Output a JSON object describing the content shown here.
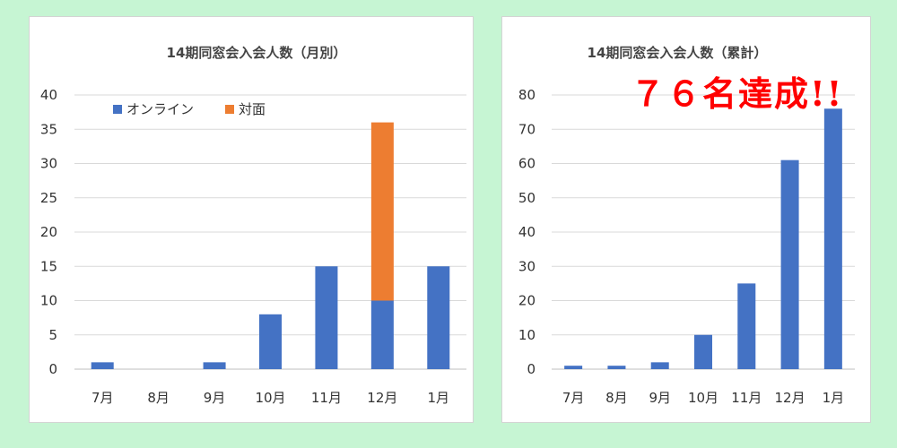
{
  "colors": {
    "background": "#c6f5d3",
    "online": "#4472c4",
    "inperson": "#ed7d31"
  },
  "annotation": "７６名達成!!",
  "chart_data": [
    {
      "type": "bar",
      "stacked": true,
      "title": "14期同窓会入会人数（月別）",
      "categories": [
        "7月",
        "8月",
        "9月",
        "10月",
        "11月",
        "12月",
        "1月"
      ],
      "series": [
        {
          "name": "オンライン",
          "values": [
            1,
            0,
            1,
            8,
            15,
            10,
            15
          ]
        },
        {
          "name": "対面",
          "values": [
            0,
            0,
            0,
            0,
            0,
            26,
            0
          ]
        }
      ],
      "ylim": [
        0,
        40
      ],
      "yticks": [
        0,
        5,
        10,
        15,
        20,
        25,
        30,
        35,
        40
      ],
      "grid": true,
      "legend": "top-left"
    },
    {
      "type": "bar",
      "title": "14期同窓会入会人数（累計）",
      "categories": [
        "7月",
        "8月",
        "9月",
        "10月",
        "11月",
        "12月",
        "1月"
      ],
      "series": [
        {
          "values": [
            1,
            1,
            2,
            10,
            25,
            61,
            76
          ]
        }
      ],
      "ylim": [
        0,
        80
      ],
      "yticks": [
        0,
        10,
        20,
        30,
        40,
        50,
        60,
        70,
        80
      ],
      "grid": true
    }
  ]
}
